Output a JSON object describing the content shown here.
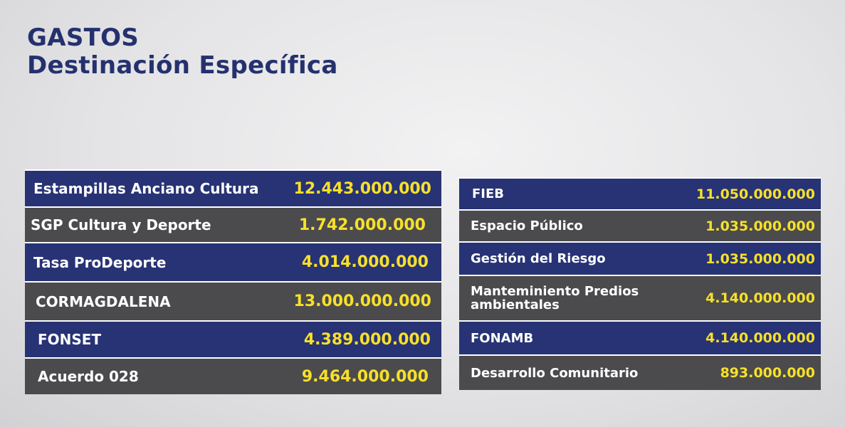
{
  "title": {
    "line1": "GASTOS",
    "line2": "Destinación Específica"
  },
  "left_table": [
    {
      "label": "Estampillas Anciano Cultura",
      "value": "12.443.000.000",
      "color": "blue"
    },
    {
      "label": "SGP Cultura y Deporte",
      "value": "1.742.000.000",
      "color": "grey"
    },
    {
      "label": "Tasa ProDeporte",
      "value": "4.014.000.000",
      "color": "blue"
    },
    {
      "label": "CORMAGDALENA",
      "value": "13.000.000.000",
      "color": "grey"
    },
    {
      "label": "FONSET",
      "value": "4.389.000.000",
      "color": "blue"
    },
    {
      "label": "Acuerdo 028",
      "value": "9.464.000.000",
      "color": "grey"
    }
  ],
  "right_table": [
    {
      "label": "FIEB",
      "value": "11.050.000.000",
      "color": "blue"
    },
    {
      "label": "Espacio Público",
      "value": "1.035.000.000",
      "color": "grey"
    },
    {
      "label": "Gestión del Riesgo",
      "value": "1.035.000.000",
      "color": "blue"
    },
    {
      "label": "Manteminiento Predios ambientales",
      "value": "4.140.000.000",
      "color": "grey"
    },
    {
      "label": "FONAMB",
      "value": "4.140.000.000",
      "color": "blue"
    },
    {
      "label": "Desarrollo Comunitario",
      "value": "893.000.000",
      "color": "grey"
    }
  ],
  "colors": {
    "navy": "#273374",
    "grey": "#4b4b4d",
    "value_yellow": "#f7e02a",
    "title_navy": "#25316e"
  }
}
